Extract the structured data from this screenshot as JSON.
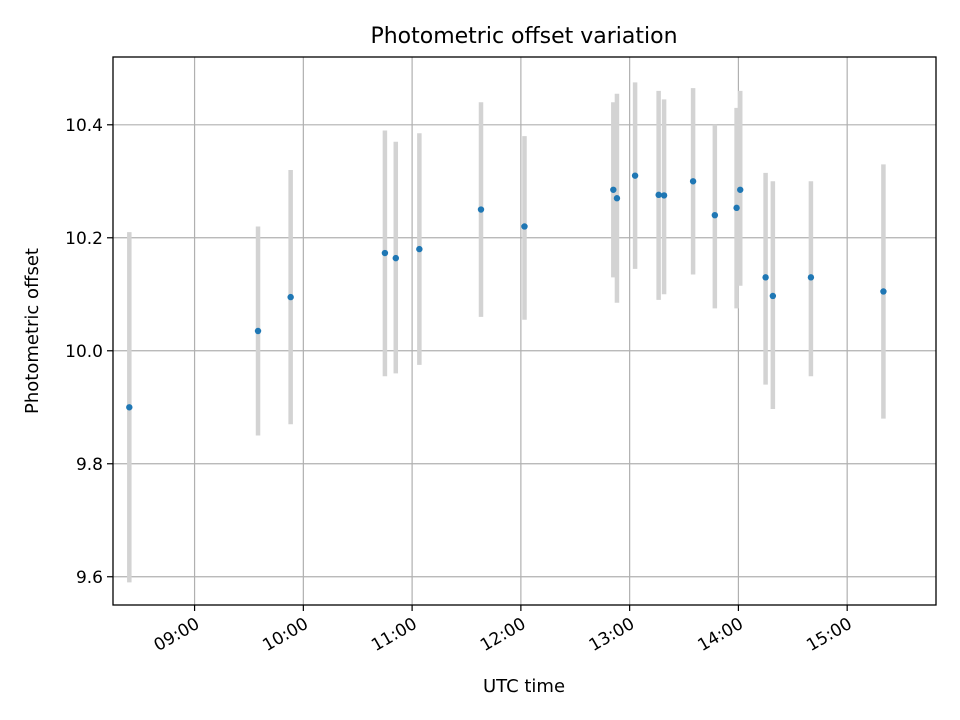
{
  "chart_data": {
    "type": "scatter",
    "title": "Photometric offset variation",
    "xlabel": "UTC time",
    "ylabel": "Photometric offset",
    "x_axis_type": "time",
    "xlim": [
      "08:15",
      "15:49"
    ],
    "ylim": [
      9.55,
      10.52
    ],
    "x_ticks": [
      "09:00",
      "10:00",
      "11:00",
      "12:00",
      "13:00",
      "14:00",
      "15:00"
    ],
    "y_ticks": [
      9.6,
      9.8,
      10.0,
      10.2,
      10.4
    ],
    "y_tick_labels": [
      "9.6",
      "9.8",
      "10.0",
      "10.2",
      "10.4"
    ],
    "grid": true,
    "colors": {
      "marker": "#1f77b4",
      "errorbar": "#d3d3d3",
      "grid": "#b0b0b0"
    },
    "points": [
      {
        "x": "08:24",
        "y": 9.9,
        "lo": 9.59,
        "hi": 10.21
      },
      {
        "x": "09:35",
        "y": 10.035,
        "lo": 9.85,
        "hi": 10.22
      },
      {
        "x": "09:53",
        "y": 10.095,
        "lo": 9.87,
        "hi": 10.32
      },
      {
        "x": "10:45",
        "y": 10.173,
        "lo": 9.955,
        "hi": 10.39
      },
      {
        "x": "10:51",
        "y": 10.164,
        "lo": 9.96,
        "hi": 10.37
      },
      {
        "x": "11:04",
        "y": 10.18,
        "lo": 9.975,
        "hi": 10.385
      },
      {
        "x": "11:38",
        "y": 10.25,
        "lo": 10.06,
        "hi": 10.44
      },
      {
        "x": "12:02",
        "y": 10.22,
        "lo": 10.055,
        "hi": 10.38
      },
      {
        "x": "12:51",
        "y": 10.285,
        "lo": 10.13,
        "hi": 10.44
      },
      {
        "x": "12:53",
        "y": 10.27,
        "lo": 10.085,
        "hi": 10.455
      },
      {
        "x": "13:03",
        "y": 10.31,
        "lo": 10.145,
        "hi": 10.475
      },
      {
        "x": "13:16",
        "y": 10.276,
        "lo": 10.09,
        "hi": 10.46
      },
      {
        "x": "13:19",
        "y": 10.275,
        "lo": 10.1,
        "hi": 10.445
      },
      {
        "x": "13:35",
        "y": 10.3,
        "lo": 10.135,
        "hi": 10.465
      },
      {
        "x": "13:47",
        "y": 10.24,
        "lo": 10.075,
        "hi": 10.4
      },
      {
        "x": "13:59",
        "y": 10.253,
        "lo": 10.075,
        "hi": 10.43
      },
      {
        "x": "14:01",
        "y": 10.285,
        "lo": 10.115,
        "hi": 10.46
      },
      {
        "x": "14:15",
        "y": 10.13,
        "lo": 9.94,
        "hi": 10.315
      },
      {
        "x": "14:19",
        "y": 10.097,
        "lo": 9.897,
        "hi": 10.3
      },
      {
        "x": "14:40",
        "y": 10.13,
        "lo": 9.955,
        "hi": 10.3
      },
      {
        "x": "15:20",
        "y": 10.105,
        "lo": 9.88,
        "hi": 10.33
      }
    ]
  }
}
